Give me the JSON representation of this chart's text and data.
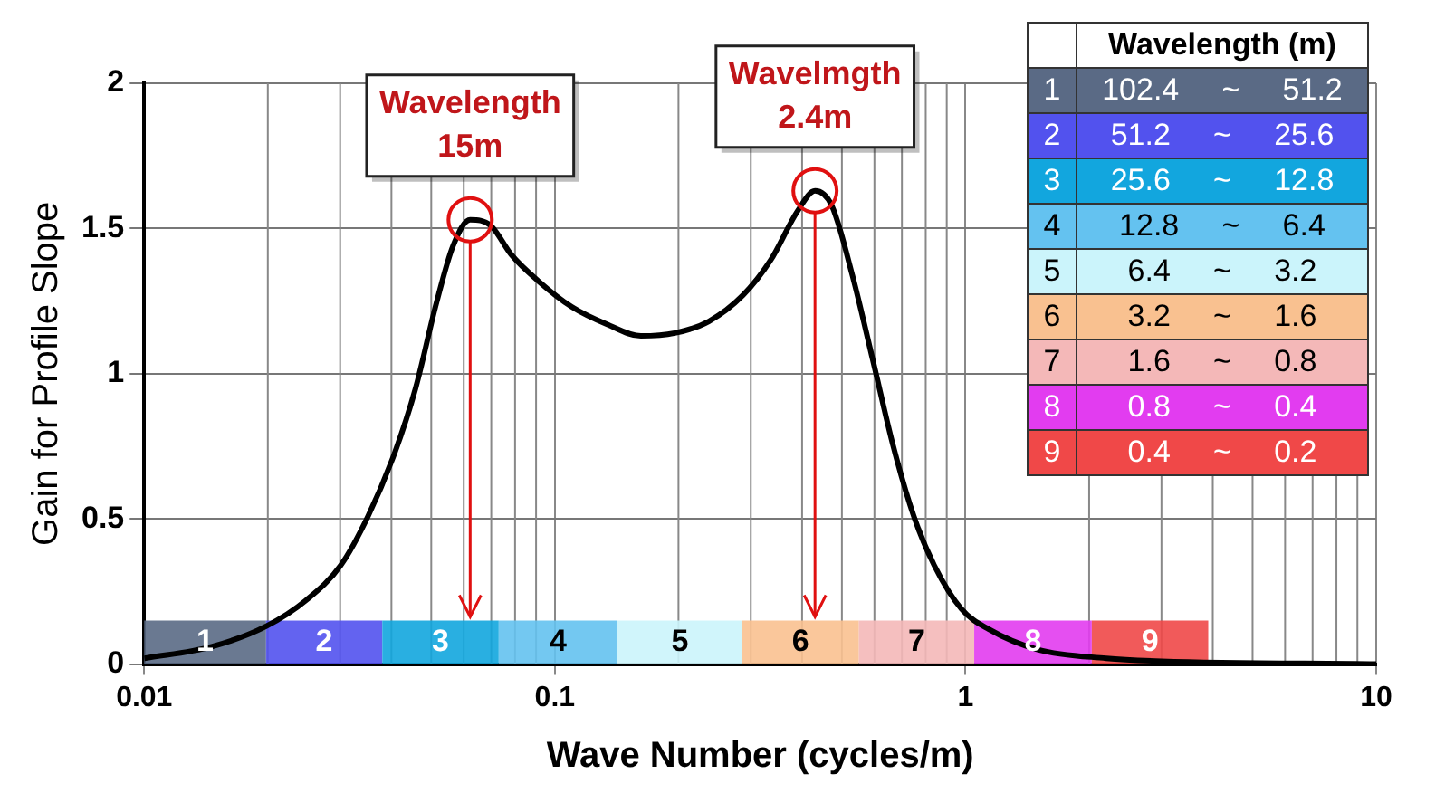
{
  "chart_data": {
    "type": "line",
    "xlabel": "Wave Number (cycles/m)",
    "ylabel": "Gain for Profile Slope",
    "x": [
      0.01,
      0.0146,
      0.0198,
      0.0248,
      0.0301,
      0.0351,
      0.0408,
      0.0458,
      0.0514,
      0.0565,
      0.0622,
      0.0698,
      0.0783,
      0.091,
      0.11,
      0.134,
      0.162,
      0.196,
      0.237,
      0.287,
      0.335,
      0.39,
      0.43,
      0.472,
      0.53,
      0.594,
      0.667,
      0.748,
      0.839,
      0.977,
      1.14,
      1.5,
      2.2,
      3,
      10
    ],
    "series": [
      {
        "color": "#000000",
        "values": [
          0.02,
          0.06,
          0.13,
          0.22,
          0.34,
          0.51,
          0.73,
          0.95,
          1.24,
          1.44,
          1.53,
          1.51,
          1.41,
          1.32,
          1.23,
          1.17,
          1.13,
          1.14,
          1.18,
          1.27,
          1.39,
          1.56,
          1.63,
          1.58,
          1.34,
          1.05,
          0.75,
          0.51,
          0.34,
          0.19,
          0.12,
          0.05,
          0.02,
          0.01,
          0
        ]
      }
    ],
    "log": "x",
    "xlim": [
      0.01,
      10
    ],
    "xticks": [
      0.01,
      0.1,
      1,
      10
    ],
    "ylim": [
      0,
      2
    ],
    "yticks": [
      0,
      0.5,
      1,
      1.5,
      2
    ],
    "grid": true,
    "legend": false,
    "marker": "none",
    "line_style": "solid",
    "bands": [
      {
        "axis": "x",
        "from": 0.01,
        "to": 0.0198,
        "label": "1",
        "color": "#5a6a85"
      },
      {
        "axis": "x",
        "from": 0.0198,
        "to": 0.038,
        "label": "2",
        "color": "#5252ee"
      },
      {
        "axis": "x",
        "from": 0.038,
        "to": 0.073,
        "label": "3",
        "color": "#12a6de"
      },
      {
        "axis": "x",
        "from": 0.073,
        "to": 0.142,
        "label": "4",
        "color": "#64c2f0"
      },
      {
        "axis": "x",
        "from": 0.142,
        "to": 0.286,
        "label": "5",
        "color": "#cbf4fb"
      },
      {
        "axis": "x",
        "from": 0.286,
        "to": 0.55,
        "label": "6",
        "color": "#f9c190"
      },
      {
        "axis": "x",
        "from": 0.55,
        "to": 1.05,
        "label": "7",
        "color": "#f4b8b8"
      },
      {
        "axis": "x",
        "from": 1.05,
        "to": 2.03,
        "label": "8",
        "color": "#e23cf0"
      },
      {
        "axis": "x",
        "from": 2.03,
        "to": 3.9,
        "label": "9",
        "color": "#f04848"
      }
    ],
    "annotations": [
      {
        "text": "Wavelength\n15m",
        "x": 0.0622,
        "y": 1.53
      },
      {
        "text": "Wavelmgth\n2.4m",
        "x": 0.43,
        "y": 1.63
      },
      "Wavelength (m)",
      "102.4 ~ 51.2",
      "51.2 ~ 25.6",
      "25.6 ~ 12.8",
      "12.8 ~ 6.4",
      "6.4 ~ 3.2",
      "3.2 ~ 1.6",
      "1.6 ~ 0.8",
      "0.8 ~ 0.4",
      "0.4 ~ 0.2"
    ]
  }
}
